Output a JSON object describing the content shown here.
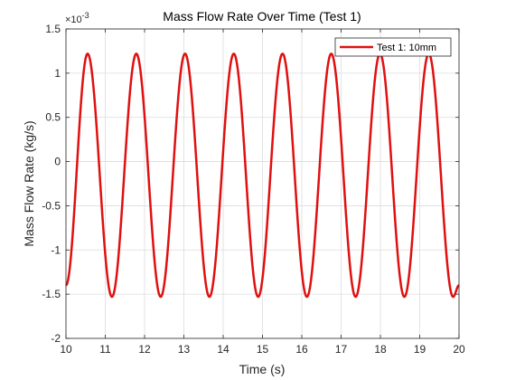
{
  "chart_data": {
    "type": "line",
    "title": "Mass Flow Rate Over Time (Test 1)",
    "xlabel": "Time (s)",
    "ylabel": "Mass Flow Rate (kg/s)",
    "y_exponent_label": "×10",
    "y_exponent_power": "-3",
    "xlim": [
      10,
      20
    ],
    "ylim": [
      -2,
      1.5
    ],
    "x_ticks": [
      "10",
      "11",
      "12",
      "13",
      "14",
      "15",
      "16",
      "17",
      "18",
      "19",
      "20"
    ],
    "y_ticks": [
      "-2",
      "-1.5",
      "-1",
      "-0.5",
      "0",
      "0.5",
      "1",
      "1.5"
    ],
    "grid": true,
    "legend_position": "top-right",
    "series": [
      {
        "name": "Test 1: 10mm",
        "color": "#e01010",
        "period": 1.24,
        "peaks_x": [
          10.55,
          11.79,
          13.03,
          14.27,
          15.51,
          16.75,
          17.99,
          19.23
        ],
        "troughs_x": [
          11.17,
          12.41,
          13.65,
          14.89,
          16.13,
          17.37,
          18.61,
          19.85
        ],
        "peak_value": 1.22,
        "trough_value": -1.53,
        "start": {
          "x": 10.0,
          "y": -1.4
        },
        "end": {
          "x": 20.0,
          "y": -1.4
        }
      }
    ]
  }
}
